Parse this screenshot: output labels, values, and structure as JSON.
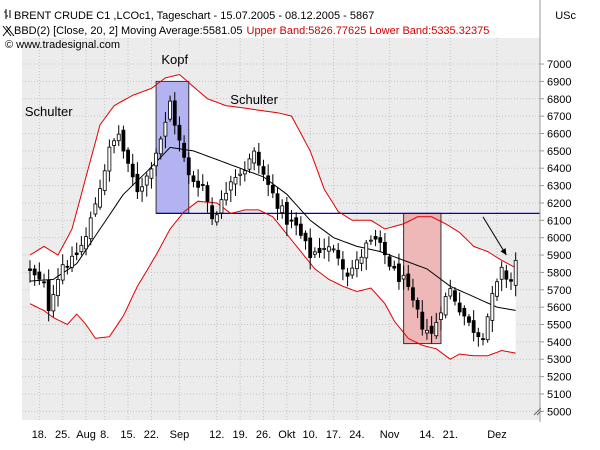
{
  "header": {
    "line1": "BRENT CRUDE  C1 ,LCOc1, Tageschart - 15.07.2005 - 08.12.2005 - 5867",
    "line2_black": "BBD(2) [Close, 20, 2] Moving Average:5581.05",
    "line2_red": "Upper Band:5826.77625 Lower Band:5335.32375",
    "line3": "© www.tradesignal.com",
    "currency": "USc"
  },
  "colors": {
    "upper_band": "#e00000",
    "lower_band": "#e00000",
    "moving_average": "#000000",
    "band_fill": "#ffffff",
    "background": "#ececec",
    "candles": "#000000",
    "neckline": "#0000c8",
    "head_box": "#9999ee",
    "target_box": "#e8a0a0"
  },
  "chart_data": {
    "type": "candlestick",
    "title": "BRENT CRUDE  C1 ,LCOc1, Tageschart - 15.07.2005 - 08.12.2005 - 5867",
    "y_unit": "USc",
    "ylim": [
      4950,
      7150
    ],
    "y_ticks": [
      5000,
      5100,
      5200,
      5300,
      5400,
      5500,
      5600,
      5700,
      5800,
      5900,
      6000,
      6100,
      6200,
      6300,
      6400,
      6500,
      6600,
      6700,
      6800,
      6900,
      7000
    ],
    "x_ticks": [
      {
        "label": "18.",
        "i": 2
      },
      {
        "label": "25.",
        "i": 7
      },
      {
        "label": "Aug",
        "i": 12
      },
      {
        "label": "8.",
        "i": 16
      },
      {
        "label": "15.",
        "i": 21
      },
      {
        "label": "22.",
        "i": 26
      },
      {
        "label": "Sep",
        "i": 32
      },
      {
        "label": "12.",
        "i": 40
      },
      {
        "label": "19.",
        "i": 45
      },
      {
        "label": "26.",
        "i": 50
      },
      {
        "label": "Okt",
        "i": 55
      },
      {
        "label": "10.",
        "i": 60
      },
      {
        "label": "17.",
        "i": 65
      },
      {
        "label": "24.",
        "i": 70
      },
      {
        "label": "Nov",
        "i": 77
      },
      {
        "label": "14.",
        "i": 85
      },
      {
        "label": "21.",
        "i": 90
      },
      {
        "label": "Dez",
        "i": 100
      }
    ],
    "num_bars": 105,
    "close_anchors": [
      [
        0,
        5800
      ],
      [
        3,
        5720
      ],
      [
        4,
        5600
      ],
      [
        5,
        5700
      ],
      [
        7,
        5850
      ],
      [
        9,
        5860
      ],
      [
        12,
        6000
      ],
      [
        15,
        6300
      ],
      [
        17,
        6500
      ],
      [
        19,
        6600
      ],
      [
        21,
        6400
      ],
      [
        23,
        6280
      ],
      [
        25,
        6350
      ],
      [
        27,
        6500
      ],
      [
        29,
        6650
      ],
      [
        30,
        6780
      ],
      [
        32,
        6550
      ],
      [
        34,
        6350
      ],
      [
        37,
        6300
      ],
      [
        39,
        6120
      ],
      [
        41,
        6200
      ],
      [
        43,
        6350
      ],
      [
        46,
        6400
      ],
      [
        48,
        6480
      ],
      [
        51,
        6300
      ],
      [
        53,
        6200
      ],
      [
        55,
        6100
      ],
      [
        57,
        6060
      ],
      [
        60,
        5900
      ],
      [
        63,
        5950
      ],
      [
        66,
        5900
      ],
      [
        68,
        5800
      ],
      [
        70,
        5850
      ],
      [
        72,
        5950
      ],
      [
        74,
        5980
      ],
      [
        76,
        5900
      ],
      [
        78,
        5800
      ],
      [
        80,
        5750
      ],
      [
        82,
        5620
      ],
      [
        84,
        5500
      ],
      [
        86,
        5440
      ],
      [
        88,
        5600
      ],
      [
        90,
        5700
      ],
      [
        92,
        5600
      ],
      [
        94,
        5500
      ],
      [
        96,
        5450
      ],
      [
        97,
        5450
      ],
      [
        99,
        5650
      ],
      [
        101,
        5800
      ],
      [
        103,
        5750
      ],
      [
        104,
        5867
      ]
    ],
    "ma_anchors": [
      [
        0,
        5750
      ],
      [
        5,
        5760
      ],
      [
        10,
        5850
      ],
      [
        15,
        6050
      ],
      [
        20,
        6250
      ],
      [
        25,
        6380
      ],
      [
        30,
        6520
      ],
      [
        35,
        6500
      ],
      [
        40,
        6450
      ],
      [
        45,
        6400
      ],
      [
        50,
        6350
      ],
      [
        55,
        6250
      ],
      [
        60,
        6100
      ],
      [
        65,
        6000
      ],
      [
        70,
        5950
      ],
      [
        75,
        5920
      ],
      [
        80,
        5870
      ],
      [
        85,
        5820
      ],
      [
        90,
        5720
      ],
      [
        95,
        5660
      ],
      [
        100,
        5600
      ],
      [
        104,
        5581.05
      ]
    ],
    "upper_anchors": [
      [
        0,
        5900
      ],
      [
        3,
        5950
      ],
      [
        6,
        5900
      ],
      [
        9,
        6050
      ],
      [
        12,
        6350
      ],
      [
        15,
        6650
      ],
      [
        18,
        6760
      ],
      [
        22,
        6820
      ],
      [
        26,
        6860
      ],
      [
        29,
        6920
      ],
      [
        32,
        6940
      ],
      [
        35,
        6870
      ],
      [
        38,
        6800
      ],
      [
        42,
        6760
      ],
      [
        45,
        6750
      ],
      [
        50,
        6730
      ],
      [
        53,
        6720
      ],
      [
        56,
        6700
      ],
      [
        60,
        6500
      ],
      [
        63,
        6280
      ],
      [
        66,
        6150
      ],
      [
        69,
        6100
      ],
      [
        73,
        6100
      ],
      [
        76,
        6050
      ],
      [
        80,
        6080
      ],
      [
        83,
        6120
      ],
      [
        86,
        6120
      ],
      [
        89,
        6080
      ],
      [
        92,
        6030
      ],
      [
        95,
        5950
      ],
      [
        98,
        5920
      ],
      [
        101,
        5870
      ],
      [
        104,
        5826.78
      ]
    ],
    "lower_anchors": [
      [
        0,
        5620
      ],
      [
        3,
        5580
      ],
      [
        5,
        5540
      ],
      [
        8,
        5500
      ],
      [
        10,
        5560
      ],
      [
        12,
        5500
      ],
      [
        14,
        5420
      ],
      [
        17,
        5430
      ],
      [
        20,
        5550
      ],
      [
        23,
        5720
      ],
      [
        27,
        5900
      ],
      [
        30,
        6050
      ],
      [
        33,
        6150
      ],
      [
        36,
        6210
      ],
      [
        40,
        6200
      ],
      [
        43,
        6140
      ],
      [
        46,
        6160
      ],
      [
        49,
        6160
      ],
      [
        52,
        6120
      ],
      [
        55,
        6020
      ],
      [
        58,
        5920
      ],
      [
        61,
        5820
      ],
      [
        64,
        5760
      ],
      [
        67,
        5720
      ],
      [
        70,
        5690
      ],
      [
        73,
        5710
      ],
      [
        76,
        5620
      ],
      [
        78,
        5520
      ],
      [
        81,
        5420
      ],
      [
        84,
        5380
      ],
      [
        87,
        5360
      ],
      [
        90,
        5300
      ],
      [
        92,
        5330
      ],
      [
        95,
        5320
      ],
      [
        98,
        5320
      ],
      [
        101,
        5350
      ],
      [
        104,
        5335.32
      ]
    ],
    "indicator": {
      "name": "BBD(2)",
      "period": 20,
      "deviation": 2,
      "moving_average": 5581.05,
      "upper_band": 5826.77625,
      "lower_band": 5335.32375
    },
    "neckline": {
      "value": 6140
    },
    "head_box": {
      "i_start": 27,
      "i_end": 34,
      "low": 6140,
      "high": 6900
    },
    "target_box": {
      "i_start": 80,
      "i_end": 88,
      "low": 5390,
      "high": 6140
    },
    "annotations": [
      {
        "text": "Schulter",
        "i": 4,
        "value": 6700
      },
      {
        "text": "Kopf",
        "i": 31,
        "value": 7000
      },
      {
        "text": "Schulter",
        "i": 48,
        "value": 6770
      }
    ],
    "arrow": {
      "from_i": 97,
      "from_v": 6120,
      "to_i": 102,
      "to_v": 5900
    }
  }
}
